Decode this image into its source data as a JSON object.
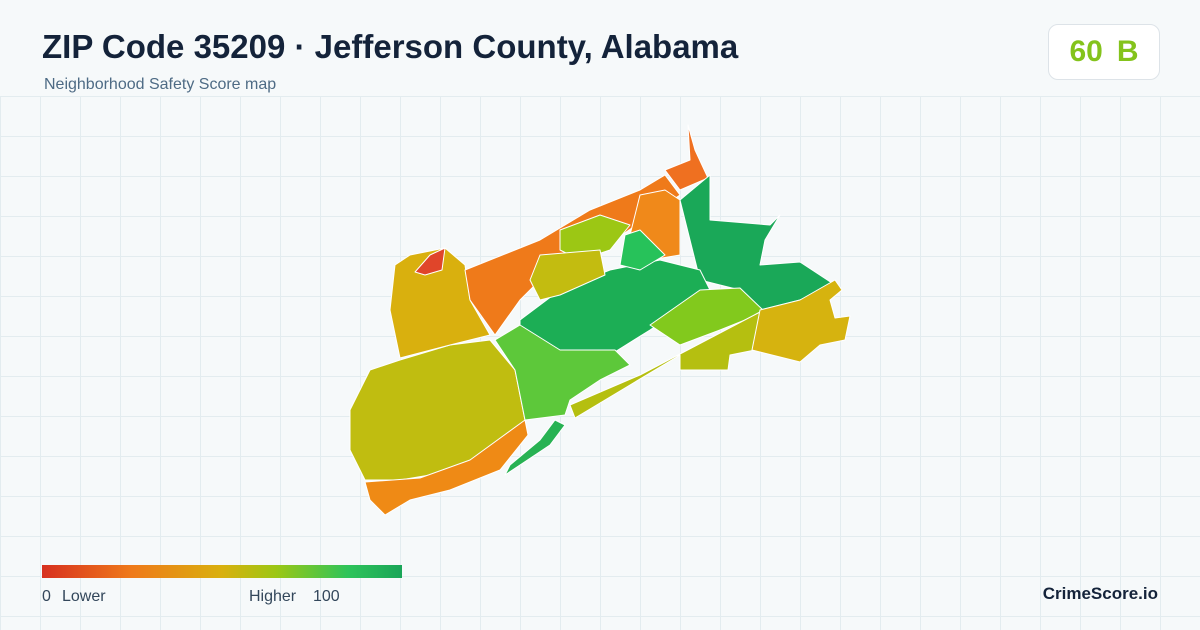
{
  "header": {
    "title": "ZIP Code 35209 · Jefferson County, Alabama",
    "subtitle": "Neighborhood Safety Score map"
  },
  "score": {
    "value": "60",
    "grade": "B"
  },
  "legend": {
    "min": "0",
    "min_label": "Lower",
    "max_label": "Higher",
    "max": "100"
  },
  "brand": "CrimeScore.io"
}
